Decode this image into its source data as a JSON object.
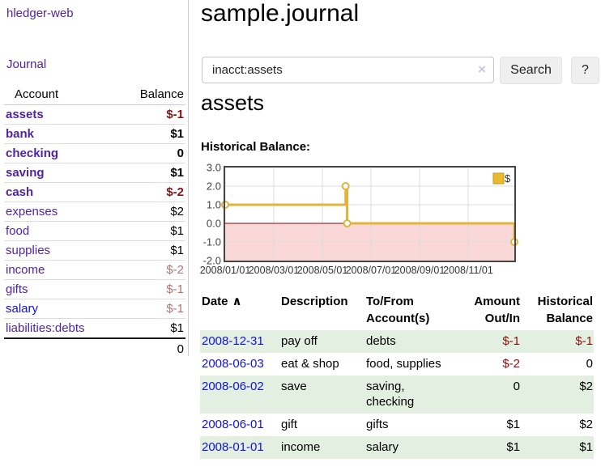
{
  "app": {
    "title": "hledger-web"
  },
  "sidebar": {
    "journal_link": "Journal",
    "accounts_table": {
      "account_header": "Account",
      "balance_header": "Balance",
      "rows": [
        {
          "name": "assets",
          "balance": "$-1",
          "level": 1,
          "bold": true,
          "balance_style": "neg"
        },
        {
          "name": "bank",
          "balance": "$1",
          "level": 2,
          "bold": true,
          "balance_style": "normal"
        },
        {
          "name": "checking",
          "balance": "0",
          "level": 3,
          "bold": true,
          "balance_style": "normal"
        },
        {
          "name": "saving",
          "balance": "$1",
          "level": 3,
          "bold": true,
          "balance_style": "normal"
        },
        {
          "name": "cash",
          "balance": "$-2",
          "level": 2,
          "bold": true,
          "balance_style": "neg"
        },
        {
          "name": "expenses",
          "balance": "$2",
          "level": 1,
          "bold": false,
          "balance_style": "normal"
        },
        {
          "name": "food",
          "balance": "$1",
          "level": 2,
          "bold": false,
          "balance_style": "normal"
        },
        {
          "name": "supplies",
          "balance": "$1",
          "level": 2,
          "bold": false,
          "balance_style": "normal"
        },
        {
          "name": "income",
          "balance": "$-2",
          "level": 1,
          "bold": false,
          "balance_style": "faded"
        },
        {
          "name": "gifts",
          "balance": "$-1",
          "level": 2,
          "bold": false,
          "balance_style": "faded"
        },
        {
          "name": "salary",
          "balance": "$-1",
          "level": 2,
          "bold": false,
          "balance_style": "faded",
          "link_color": "blue"
        },
        {
          "name": "liabilities:debts",
          "balance": "$1",
          "level": 1,
          "bold": false,
          "balance_style": "normal"
        }
      ],
      "total": "0"
    }
  },
  "page": {
    "title": "sample.journal"
  },
  "search": {
    "value": "inacct:assets",
    "clear_icon": "×",
    "search_button": "Search",
    "help_button": "?"
  },
  "account_view": {
    "heading": "assets",
    "chart_title": "Historical Balance:"
  },
  "chart_data": {
    "type": "line",
    "step": true,
    "title": "Historical Balance:",
    "legend": {
      "label": "$",
      "position": "top-right"
    },
    "y_ticks": [
      "3.0",
      "2.0",
      "1.0",
      "0.0",
      "-1.0",
      "-2.0"
    ],
    "ylim": [
      -2,
      3
    ],
    "x_ticks": [
      "2008/01/01",
      "2008/03/01",
      "2008/05/01",
      "2008/07/01",
      "2008/09/01",
      "2008/11/01"
    ],
    "x_range": [
      "2008-01-01",
      "2008-12-31"
    ],
    "series": [
      {
        "name": "$",
        "points": [
          {
            "date": "2008-01-01",
            "value": 1
          },
          {
            "date": "2008-06-01",
            "value": 2
          },
          {
            "date": "2008-06-03",
            "value": 0
          },
          {
            "date": "2008-12-31",
            "value": -1
          }
        ]
      }
    ],
    "colors": {
      "line": "#e2b33c",
      "marker_fill": "#ffffff",
      "legend_fill": "#eab92d",
      "legend_border": "#bf9a26",
      "negative_region": "#fbd8d8",
      "zero_line": "#8b0000",
      "grid": "#dddddd",
      "border": "#444444"
    }
  },
  "register": {
    "headers": [
      {
        "line1": "Date",
        "line2": "",
        "icon": "∧",
        "align": "left"
      },
      {
        "line1": "Description",
        "line2": "",
        "align": "left"
      },
      {
        "line1": "To/From",
        "line2": "Account(s)",
        "align": "left"
      },
      {
        "line1": "Amount",
        "line2": "Out/In",
        "align": "right"
      },
      {
        "line1": "Historical",
        "line2": "Balance",
        "align": "right"
      }
    ],
    "rows": [
      {
        "date": "2008-12-31",
        "description": "pay off",
        "accounts": "debts",
        "amount": "$-1",
        "amount_neg": true,
        "balance": "$-1",
        "balance_neg": true
      },
      {
        "date": "2008-06-03",
        "description": "eat & shop",
        "accounts": "food, supplies",
        "amount": "$-2",
        "amount_neg": true,
        "balance": "0",
        "balance_neg": false
      },
      {
        "date": "2008-06-02",
        "description": "save",
        "accounts": "saving, checking",
        "amount": "0",
        "amount_neg": false,
        "balance": "$2",
        "balance_neg": false
      },
      {
        "date": "2008-06-01",
        "description": "gift",
        "accounts": "gifts",
        "amount": "$1",
        "amount_neg": false,
        "balance": "$2",
        "balance_neg": false
      },
      {
        "date": "2008-01-01",
        "description": "income",
        "accounts": "salary",
        "amount": "$1",
        "amount_neg": false,
        "balance": "$1",
        "balance_neg": false
      }
    ]
  }
}
